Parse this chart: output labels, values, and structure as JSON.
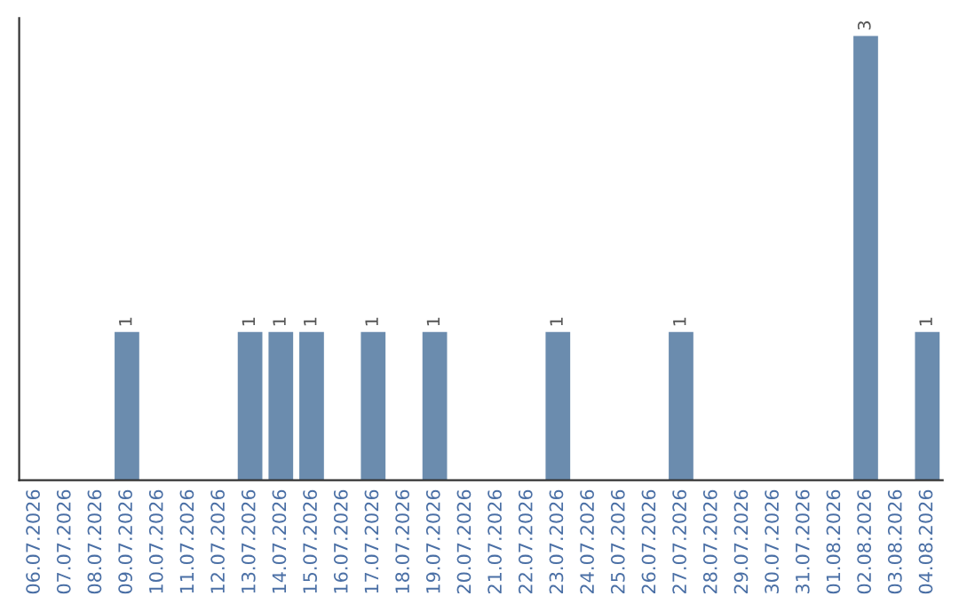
{
  "chart_data": {
    "type": "bar",
    "categories": [
      "06.07.2026",
      "07.07.2026",
      "08.07.2026",
      "09.07.2026",
      "10.07.2026",
      "11.07.2026",
      "12.07.2026",
      "13.07.2026",
      "14.07.2026",
      "15.07.2026",
      "16.07.2026",
      "17.07.2026",
      "18.07.2026",
      "19.07.2026",
      "20.07.2026",
      "21.07.2026",
      "22.07.2026",
      "23.07.2026",
      "24.07.2026",
      "25.07.2026",
      "26.07.2026",
      "27.07.2026",
      "28.07.2026",
      "29.07.2026",
      "30.07.2026",
      "31.07.2026",
      "01.08.2026",
      "02.08.2026",
      "03.08.2026",
      "04.08.2026"
    ],
    "values": [
      0,
      0,
      0,
      1,
      0,
      0,
      0,
      1,
      1,
      1,
      0,
      1,
      0,
      1,
      0,
      0,
      0,
      1,
      0,
      0,
      0,
      1,
      0,
      0,
      0,
      0,
      0,
      3,
      0,
      1
    ],
    "value_labels": [
      null,
      null,
      null,
      "1",
      null,
      null,
      null,
      "1",
      "1",
      "1",
      null,
      "1",
      null,
      "1",
      null,
      null,
      null,
      "1",
      null,
      null,
      null,
      "1",
      null,
      null,
      null,
      null,
      null,
      "3",
      null,
      "1"
    ],
    "color": "#6b8cae",
    "tick_labels": "x",
    "grid": false,
    "legend": false
  }
}
